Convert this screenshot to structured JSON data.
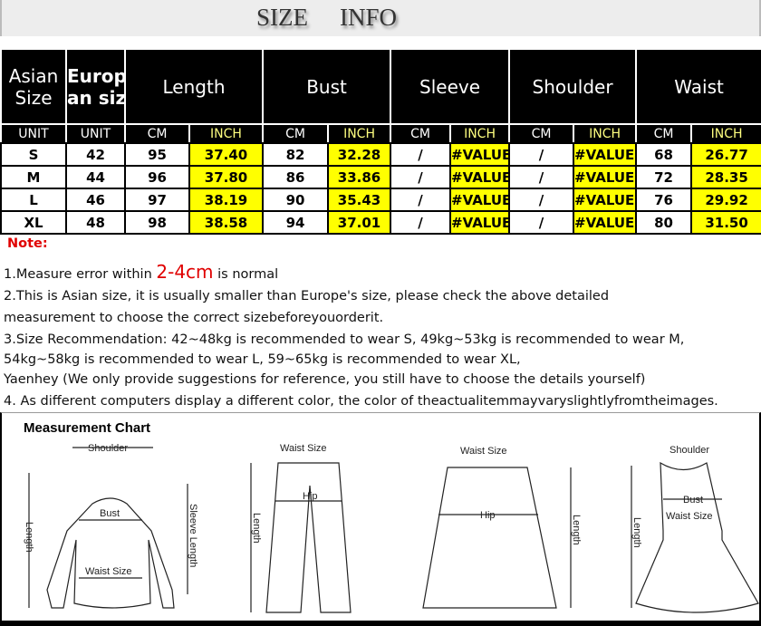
{
  "title": {
    "word1": "SIZE",
    "word2": "INFO"
  },
  "headers": {
    "asian": [
      "Asian",
      "Size"
    ],
    "europe": [
      "Europe",
      "an  size"
    ],
    "length": "Length",
    "bust": "Bust",
    "sleeve": "Sleeve",
    "shoulder": "Shoulder",
    "waist": "Waist"
  },
  "units": [
    "UNIT",
    "UNIT",
    "CM",
    "INCH",
    "CM",
    "INCH",
    "CM",
    "INCH",
    "CM",
    "INCH",
    "CM",
    "INCH"
  ],
  "rows": [
    [
      "S",
      "42",
      "95",
      "37.40",
      "82",
      "32.28",
      "/",
      "#VALUE",
      "/",
      "#VALUE!",
      "68",
      "26.77"
    ],
    [
      "M",
      "44",
      "96",
      "37.80",
      "86",
      "33.86",
      "/",
      "#VALUE",
      "/",
      "#VALUE!",
      "72",
      "28.35"
    ],
    [
      "L",
      "46",
      "97",
      "38.19",
      "90",
      "35.43",
      "/",
      "#VALUE",
      "/",
      "#VALUE!",
      "76",
      "29.92"
    ],
    [
      "XL",
      "48",
      "98",
      "38.58",
      "94",
      "37.01",
      "/",
      "#VALUE",
      "/",
      "#VALUE!",
      "80",
      "31.50"
    ]
  ],
  "notes": {
    "title": "Note:",
    "n1a": "1.Measure error within ",
    "n1b": "2-4cm",
    "n1c": " is normal",
    "n2a": "2.This is Asian size, it is usually smaller than Europe's size, please check the above detailed",
    "n2b": "measurement to choose the correct sizebeforeyouorderit.",
    "n3a": "3.Size Recommendation:  42~48kg is recommended to wear S, 49kg~53kg is recommended to wear M,",
    "n3b": "54kg~58kg is recommended to wear L, 59~65kg is recommended to wear XL,",
    "n3c": "Yaenhey (We only provide suggestions for reference, you still have to choose the details yourself)",
    "n4": "4. As different computers display a different color, the color of theactualitemmayvaryslightlyfromtheimages."
  },
  "chart": {
    "title": "Measurement Chart",
    "shoulder": "Shoulder",
    "bust": "Bust",
    "waist_size": "Waist Size",
    "length": "Length",
    "sleeve_length": "Sleeve Length",
    "hip": "Hip"
  },
  "colors": {
    "highlight": "#ffff00",
    "header_bg": "#000000",
    "accent_red": "#e00000"
  }
}
